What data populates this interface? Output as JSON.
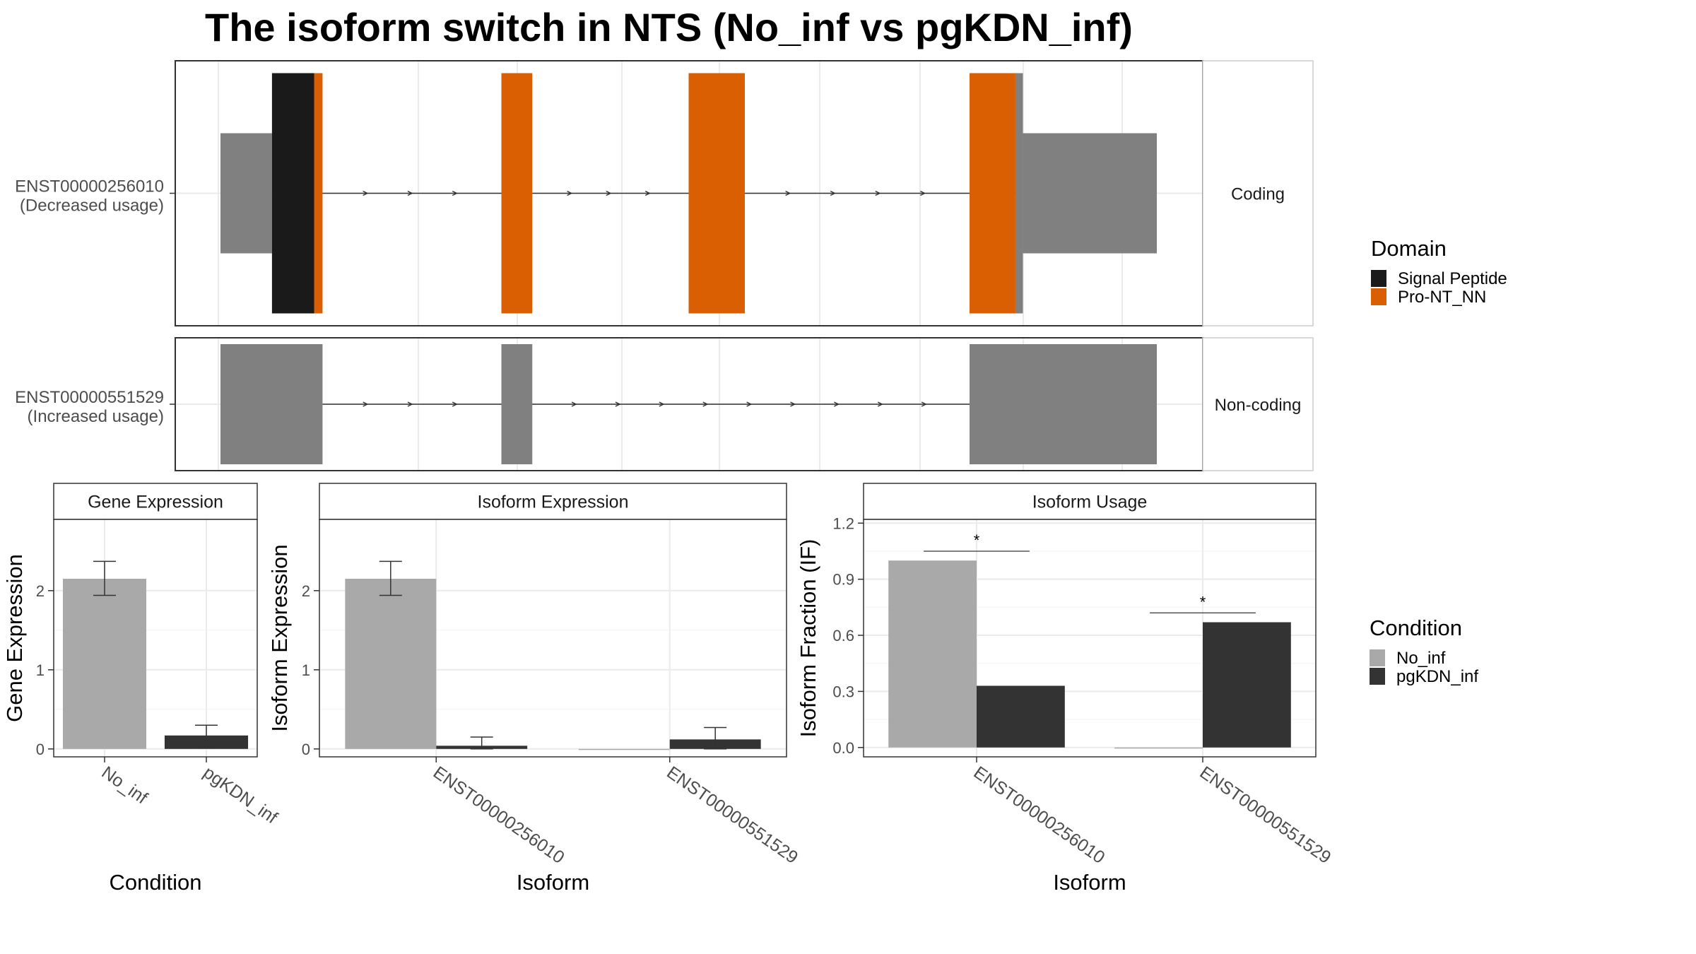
{
  "title": "The isoform switch in NTS (No_inf vs pgKDN_inf)",
  "colors": {
    "No_inf": "#a9a9a9",
    "pgKDN_inf": "#333333",
    "signal_peptide": "#1a1a1a",
    "pro_nt_nn": "#d95f02",
    "utr_exon": "#808080",
    "grid": "#ebebeb",
    "strip_bg": "#ffffff",
    "border": "#333333"
  },
  "legends": {
    "domain": {
      "title": "Domain",
      "items": [
        {
          "label": "Signal Peptide",
          "color_key": "signal_peptide"
        },
        {
          "label": "Pro-NT_NN",
          "color_key": "pro_nt_nn"
        }
      ]
    },
    "condition": {
      "title": "Condition",
      "items": [
        {
          "label": "No_inf",
          "color_key": "No_inf"
        },
        {
          "label": "pgKDN_inf",
          "color_key": "pgKDN_inf"
        }
      ]
    }
  },
  "chart_data": [
    {
      "type": "transcript-structure",
      "transcripts": [
        {
          "id": "ENST00000256010",
          "note": "(Decreased usage)",
          "strip_label": "Coding",
          "exons": [
            {
              "start": 0.0,
              "end": 0.055,
              "kind": "utr"
            },
            {
              "start": 0.055,
              "end": 0.1,
              "kind": "signal_peptide"
            },
            {
              "start": 0.1,
              "end": 0.109,
              "kind": "pro_nt_nn"
            },
            {
              "start": 0.3,
              "end": 0.333,
              "kind": "pro_nt_nn"
            },
            {
              "start": 0.5,
              "end": 0.56,
              "kind": "pro_nt_nn"
            },
            {
              "start": 0.8,
              "end": 0.849,
              "kind": "pro_nt_nn"
            },
            {
              "start": 0.849,
              "end": 0.857,
              "kind": "cds"
            },
            {
              "start": 0.857,
              "end": 1.0,
              "kind": "utr"
            }
          ]
        },
        {
          "id": "ENST00000551529",
          "note": "(Increased usage)",
          "strip_label": "Non-coding",
          "exons": [
            {
              "start": 0.0,
              "end": 0.109,
              "kind": "noncoding"
            },
            {
              "start": 0.3,
              "end": 0.333,
              "kind": "noncoding"
            },
            {
              "start": 0.8,
              "end": 1.0,
              "kind": "noncoding"
            }
          ]
        }
      ]
    },
    {
      "type": "bar",
      "title": "Gene Expression",
      "xlabel": "Condition",
      "ylabel": "Gene Expression",
      "categories": [
        "No_inf",
        "pgKDN_inf"
      ],
      "values": [
        2.15,
        0.17
      ],
      "errors": [
        [
          1.94,
          2.37
        ],
        [
          0.04,
          0.3
        ]
      ],
      "ylim": [
        -0.1,
        2.9
      ],
      "yticks": [
        0,
        1,
        2
      ]
    },
    {
      "type": "bar",
      "title": "Isoform Expression",
      "xlabel": "Isoform",
      "ylabel": "Isoform Expression",
      "categories": [
        "ENST00000256010",
        "ENST00000551529"
      ],
      "series": [
        {
          "name": "No_inf",
          "values": [
            2.15,
            0.0
          ],
          "errors": [
            [
              1.94,
              2.37
            ],
            [
              0.0,
              0.0
            ]
          ]
        },
        {
          "name": "pgKDN_inf",
          "values": [
            0.04,
            0.12
          ],
          "errors": [
            [
              0.0,
              0.15
            ],
            [
              0.0,
              0.27
            ]
          ]
        }
      ],
      "ylim": [
        -0.1,
        2.9
      ],
      "yticks": [
        0,
        1,
        2
      ]
    },
    {
      "type": "bar",
      "title": "Isoform Usage",
      "xlabel": "Isoform",
      "ylabel": "Isoform Fraction (IF)",
      "categories": [
        "ENST00000256010",
        "ENST00000551529"
      ],
      "series": [
        {
          "name": "No_inf",
          "values": [
            1.0,
            0.0
          ]
        },
        {
          "name": "pgKDN_inf",
          "values": [
            0.33,
            0.67
          ]
        }
      ],
      "ylim": [
        -0.05,
        1.22
      ],
      "yticks": [
        0.0,
        0.3,
        0.6,
        0.9,
        1.2
      ],
      "ytick_labels": [
        "0.0",
        "0.3",
        "0.6",
        "0.9",
        "1.2"
      ],
      "significance": [
        {
          "category": "ENST00000256010",
          "label": "*",
          "y": 1.05
        },
        {
          "category": "ENST00000551529",
          "label": "*",
          "y": 0.72
        }
      ]
    }
  ]
}
